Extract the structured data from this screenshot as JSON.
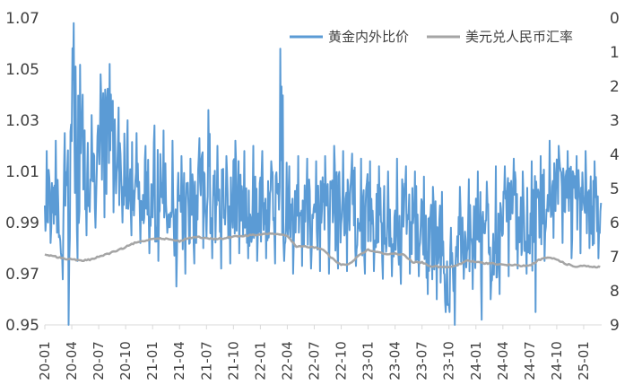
{
  "chart_data": {
    "type": "line",
    "title": "",
    "legend_position": "top-right",
    "x_start": "20-01",
    "x_end": "25-03",
    "x_tick_labels": [
      "20-01",
      "20-04",
      "20-07",
      "20-10",
      "21-01",
      "21-04",
      "21-07",
      "21-10",
      "22-01",
      "22-04",
      "22-07",
      "22-10",
      "23-01",
      "23-04",
      "23-07",
      "23-10",
      "24-01",
      "24-04",
      "24-07",
      "24-10",
      "25-01"
    ],
    "y_left": {
      "range": [
        0.95,
        1.07
      ],
      "ticks": [
        0.95,
        0.97,
        0.99,
        1.01,
        1.03,
        1.05,
        1.07
      ],
      "tick_labels": [
        "0.95",
        "0.97",
        "0.99",
        "1.01",
        "1.03",
        "1.05",
        "1.07"
      ]
    },
    "y_right": {
      "range": [
        0,
        9
      ],
      "inverted": true,
      "ticks": [
        0,
        1,
        2,
        3,
        4,
        5,
        6,
        7,
        8,
        9
      ],
      "tick_labels": [
        "0",
        "1",
        "2",
        "3",
        "4",
        "5",
        "6",
        "7",
        "8",
        "9"
      ]
    },
    "series": [
      {
        "name": "黄金内外比价",
        "axis": "left",
        "color": "#5B9BD5",
        "x": [
          "20-01",
          "20-02",
          "20-03",
          "20-04",
          "20-05",
          "20-06",
          "20-07",
          "20-08",
          "20-09",
          "20-10",
          "20-11",
          "20-12",
          "21-01",
          "21-02",
          "21-03",
          "21-04",
          "21-05",
          "21-06",
          "21-07",
          "21-08",
          "21-09",
          "21-10",
          "21-11",
          "21-12",
          "22-01",
          "22-02",
          "22-03",
          "22-04",
          "22-05",
          "22-06",
          "22-07",
          "22-08",
          "22-09",
          "22-10",
          "22-11",
          "22-12",
          "23-01",
          "23-02",
          "23-03",
          "23-04",
          "23-05",
          "23-06",
          "23-07",
          "23-08",
          "23-09",
          "23-10",
          "23-11",
          "23-12",
          "24-01",
          "24-02",
          "24-03",
          "24-04",
          "24-05",
          "24-06",
          "24-07",
          "24-08",
          "24-09",
          "24-10",
          "24-11",
          "24-12",
          "25-01",
          "25-02"
        ],
        "values": [
          1.001,
          0.998,
          0.972,
          1.035,
          1.012,
          1.008,
          1.021,
          1.027,
          1.018,
          1.009,
          1.005,
          0.998,
          1.002,
          1.006,
          0.987,
          0.993,
          0.996,
          1.004,
          1.003,
          0.997,
          0.998,
          1.0,
          0.996,
          0.993,
          0.997,
          0.995,
          1.013,
          0.987,
          0.996,
          0.992,
          0.994,
          0.995,
          0.993,
          0.998,
          1.0,
          0.991,
          0.993,
          0.989,
          0.991,
          0.987,
          0.994,
          0.991,
          0.986,
          0.984,
          0.983,
          0.957,
          0.987,
          0.982,
          0.984,
          0.982,
          0.983,
          0.993,
          0.995,
          0.992,
          0.989,
          0.998,
          1.005,
          1.003,
          0.998,
          0.998,
          1.002,
          0.996
        ],
        "highs": [
          1.018,
          1.022,
          1.025,
          1.068,
          1.04,
          1.032,
          1.048,
          1.052,
          1.035,
          1.03,
          1.025,
          1.02,
          1.028,
          1.026,
          1.022,
          1.016,
          1.015,
          1.023,
          1.034,
          1.02,
          1.016,
          1.022,
          1.018,
          1.02,
          1.018,
          1.014,
          1.058,
          1.012,
          1.016,
          1.015,
          1.014,
          1.016,
          1.02,
          1.018,
          1.017,
          1.015,
          1.014,
          1.012,
          1.01,
          1.015,
          1.012,
          1.01,
          1.008,
          1.004,
          1.002,
          0.988,
          1.004,
          1.007,
          1.01,
          1.006,
          1.012,
          1.012,
          1.015,
          1.01,
          1.014,
          1.016,
          1.022,
          1.02,
          1.018,
          1.016,
          1.018,
          1.014
        ],
        "lows": [
          0.982,
          0.985,
          0.95,
          0.975,
          0.985,
          0.988,
          0.992,
          0.994,
          0.99,
          0.985,
          0.982,
          0.978,
          0.975,
          0.986,
          0.965,
          0.97,
          0.974,
          0.98,
          0.976,
          0.972,
          0.974,
          0.978,
          0.976,
          0.975,
          0.976,
          0.974,
          0.975,
          0.97,
          0.973,
          0.972,
          0.971,
          0.97,
          0.972,
          0.971,
          0.973,
          0.97,
          0.971,
          0.968,
          0.969,
          0.966,
          0.97,
          0.969,
          0.962,
          0.96,
          0.955,
          0.95,
          0.968,
          0.964,
          0.952,
          0.96,
          0.962,
          0.969,
          0.972,
          0.97,
          0.955,
          0.975,
          0.984,
          0.982,
          0.976,
          0.978,
          0.98,
          0.976
        ]
      },
      {
        "name": "美元兑人民币汇率",
        "axis": "right",
        "color": "#A5A5A5",
        "x": [
          "20-01",
          "20-02",
          "20-03",
          "20-04",
          "20-05",
          "20-06",
          "20-07",
          "20-08",
          "20-09",
          "20-10",
          "20-11",
          "20-12",
          "21-01",
          "21-02",
          "21-03",
          "21-04",
          "21-05",
          "21-06",
          "21-07",
          "21-08",
          "21-09",
          "21-10",
          "21-11",
          "21-12",
          "22-01",
          "22-02",
          "22-03",
          "22-04",
          "22-05",
          "22-06",
          "22-07",
          "22-08",
          "22-09",
          "22-10",
          "22-11",
          "22-12",
          "23-01",
          "23-02",
          "23-03",
          "23-04",
          "23-05",
          "23-06",
          "23-07",
          "23-08",
          "23-09",
          "23-10",
          "23-11",
          "23-12",
          "24-01",
          "24-02",
          "24-03",
          "24-04",
          "24-05",
          "24-06",
          "24-07",
          "24-08",
          "24-09",
          "24-10",
          "24-11",
          "24-12",
          "25-01",
          "25-02"
        ],
        "values": [
          6.92,
          6.99,
          7.05,
          7.08,
          7.12,
          7.09,
          7.0,
          6.92,
          6.83,
          6.72,
          6.6,
          6.54,
          6.47,
          6.46,
          6.5,
          6.55,
          6.45,
          6.42,
          6.47,
          6.48,
          6.46,
          6.41,
          6.39,
          6.37,
          6.36,
          6.32,
          6.34,
          6.4,
          6.71,
          6.7,
          6.73,
          6.78,
          7.06,
          7.24,
          7.2,
          6.95,
          6.8,
          6.87,
          6.92,
          6.91,
          6.95,
          7.16,
          7.17,
          7.28,
          7.3,
          7.31,
          7.25,
          7.11,
          7.16,
          7.19,
          7.2,
          7.24,
          7.24,
          7.27,
          7.26,
          7.1,
          7.02,
          7.08,
          7.21,
          7.29,
          7.26,
          7.3
        ]
      }
    ]
  }
}
